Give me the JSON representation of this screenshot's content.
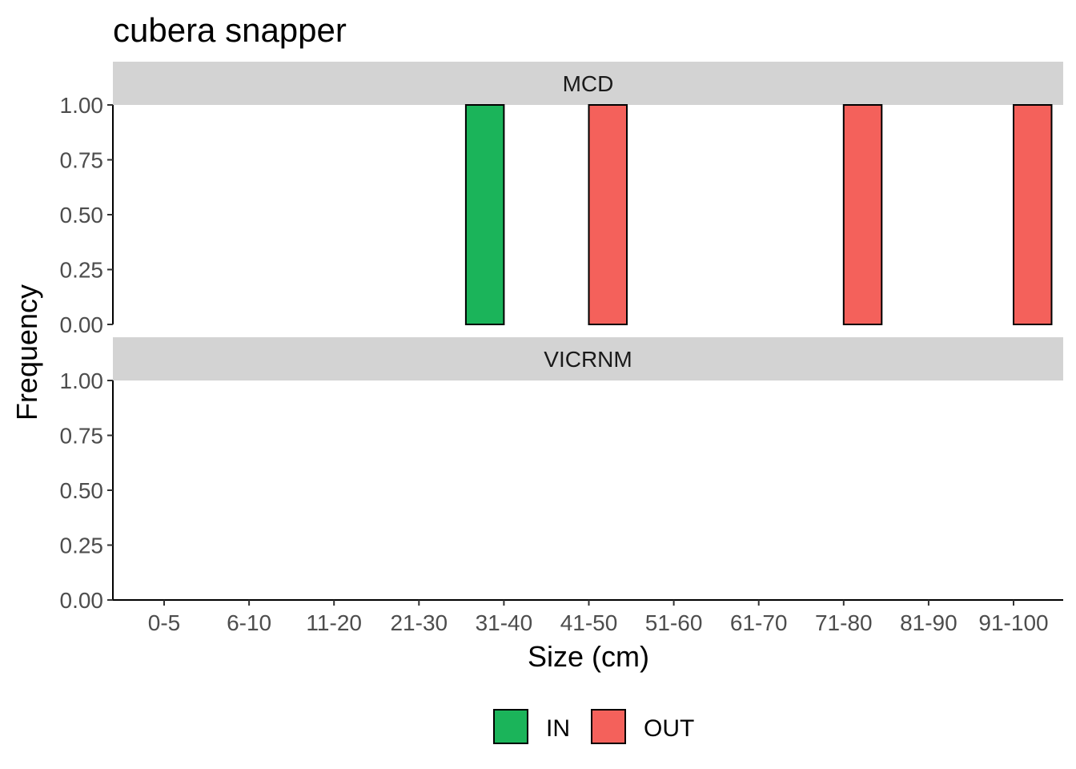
{
  "chart_data": {
    "type": "bar",
    "title": "cubera snapper",
    "xlabel": "Size (cm)",
    "ylabel": "Frequency",
    "categories": [
      "0-5",
      "6-10",
      "11-20",
      "21-30",
      "31-40",
      "41-50",
      "51-60",
      "61-70",
      "71-80",
      "81-90",
      "91-100"
    ],
    "ylim": [
      0,
      1.2
    ],
    "yticks": [
      "0.00",
      "0.25",
      "0.50",
      "0.75",
      "1.00"
    ],
    "grid": false,
    "legend_position": "bottom",
    "legend": [
      {
        "name": "IN",
        "color": "#1BB45A"
      },
      {
        "name": "OUT",
        "color": "#F4615B"
      }
    ],
    "facets": [
      {
        "label": "MCD",
        "series": [
          {
            "name": "IN",
            "values": [
              0,
              0,
              0,
              0,
              1,
              0,
              0,
              0,
              0,
              0,
              0
            ]
          },
          {
            "name": "OUT",
            "values": [
              0,
              0,
              0,
              0,
              0,
              1,
              0,
              0,
              1,
              0,
              1
            ]
          }
        ]
      },
      {
        "label": "VICRNM",
        "series": [
          {
            "name": "IN",
            "values": [
              0,
              0,
              0,
              0,
              0,
              0,
              0,
              0,
              0,
              0,
              0
            ]
          },
          {
            "name": "OUT",
            "values": [
              0,
              0,
              0,
              0,
              0,
              0,
              0,
              0,
              0,
              0,
              0
            ]
          }
        ]
      }
    ]
  }
}
